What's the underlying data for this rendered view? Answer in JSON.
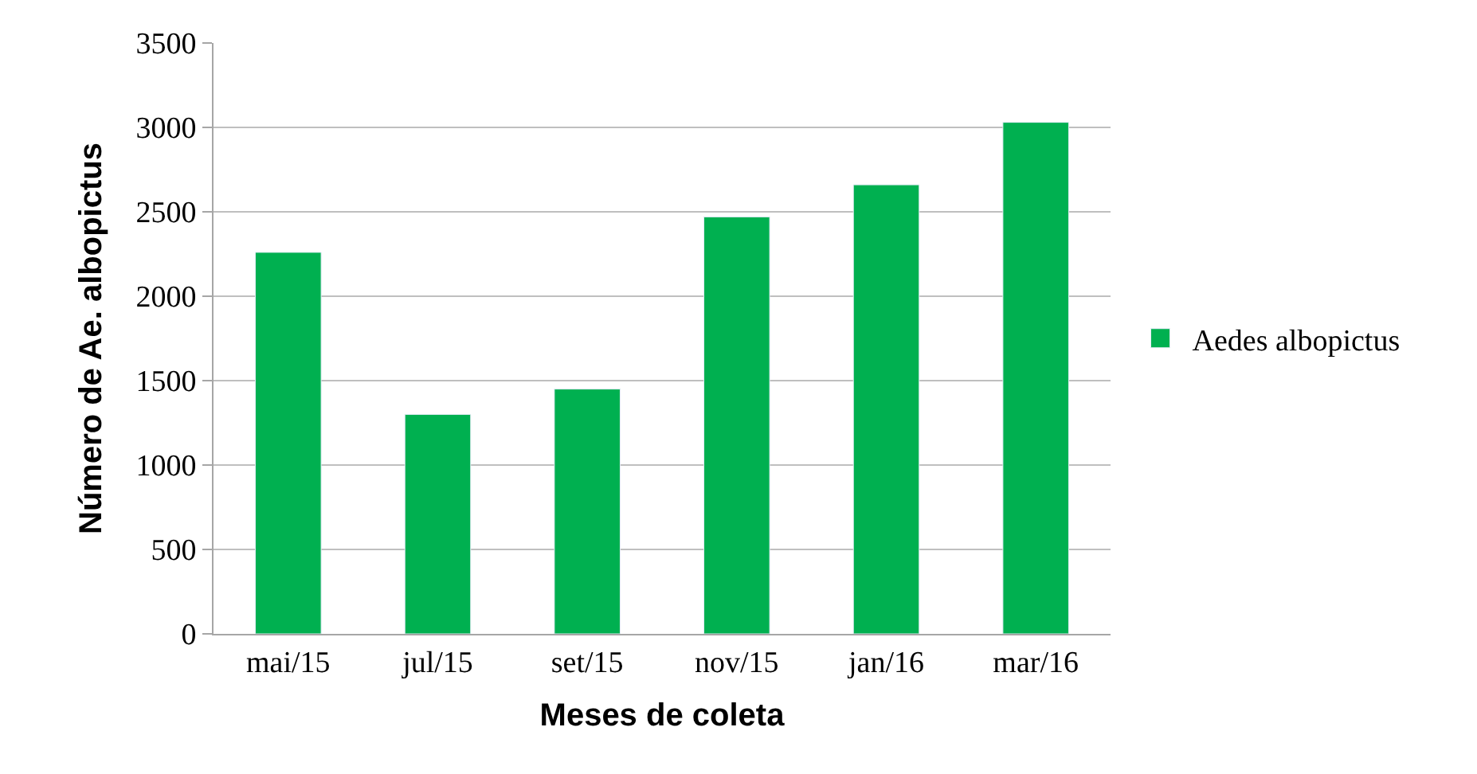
{
  "chart_data": {
    "type": "bar",
    "xlabel": "Meses de coleta",
    "ylabel": "Número de Ae. albopictus",
    "categories": [
      "mai/15",
      "jul/15",
      "set/15",
      "nov/15",
      "jan/16",
      "mar/16"
    ],
    "series": [
      {
        "name": "Aedes albopictus",
        "color": "#00b050",
        "values": [
          2260,
          1300,
          1450,
          2470,
          2660,
          3030
        ]
      }
    ],
    "ylim": [
      0,
      3500
    ],
    "yticks": [
      0,
      500,
      1000,
      1500,
      2000,
      2500,
      3000,
      3500
    ],
    "grid": "y",
    "legend": "right"
  }
}
